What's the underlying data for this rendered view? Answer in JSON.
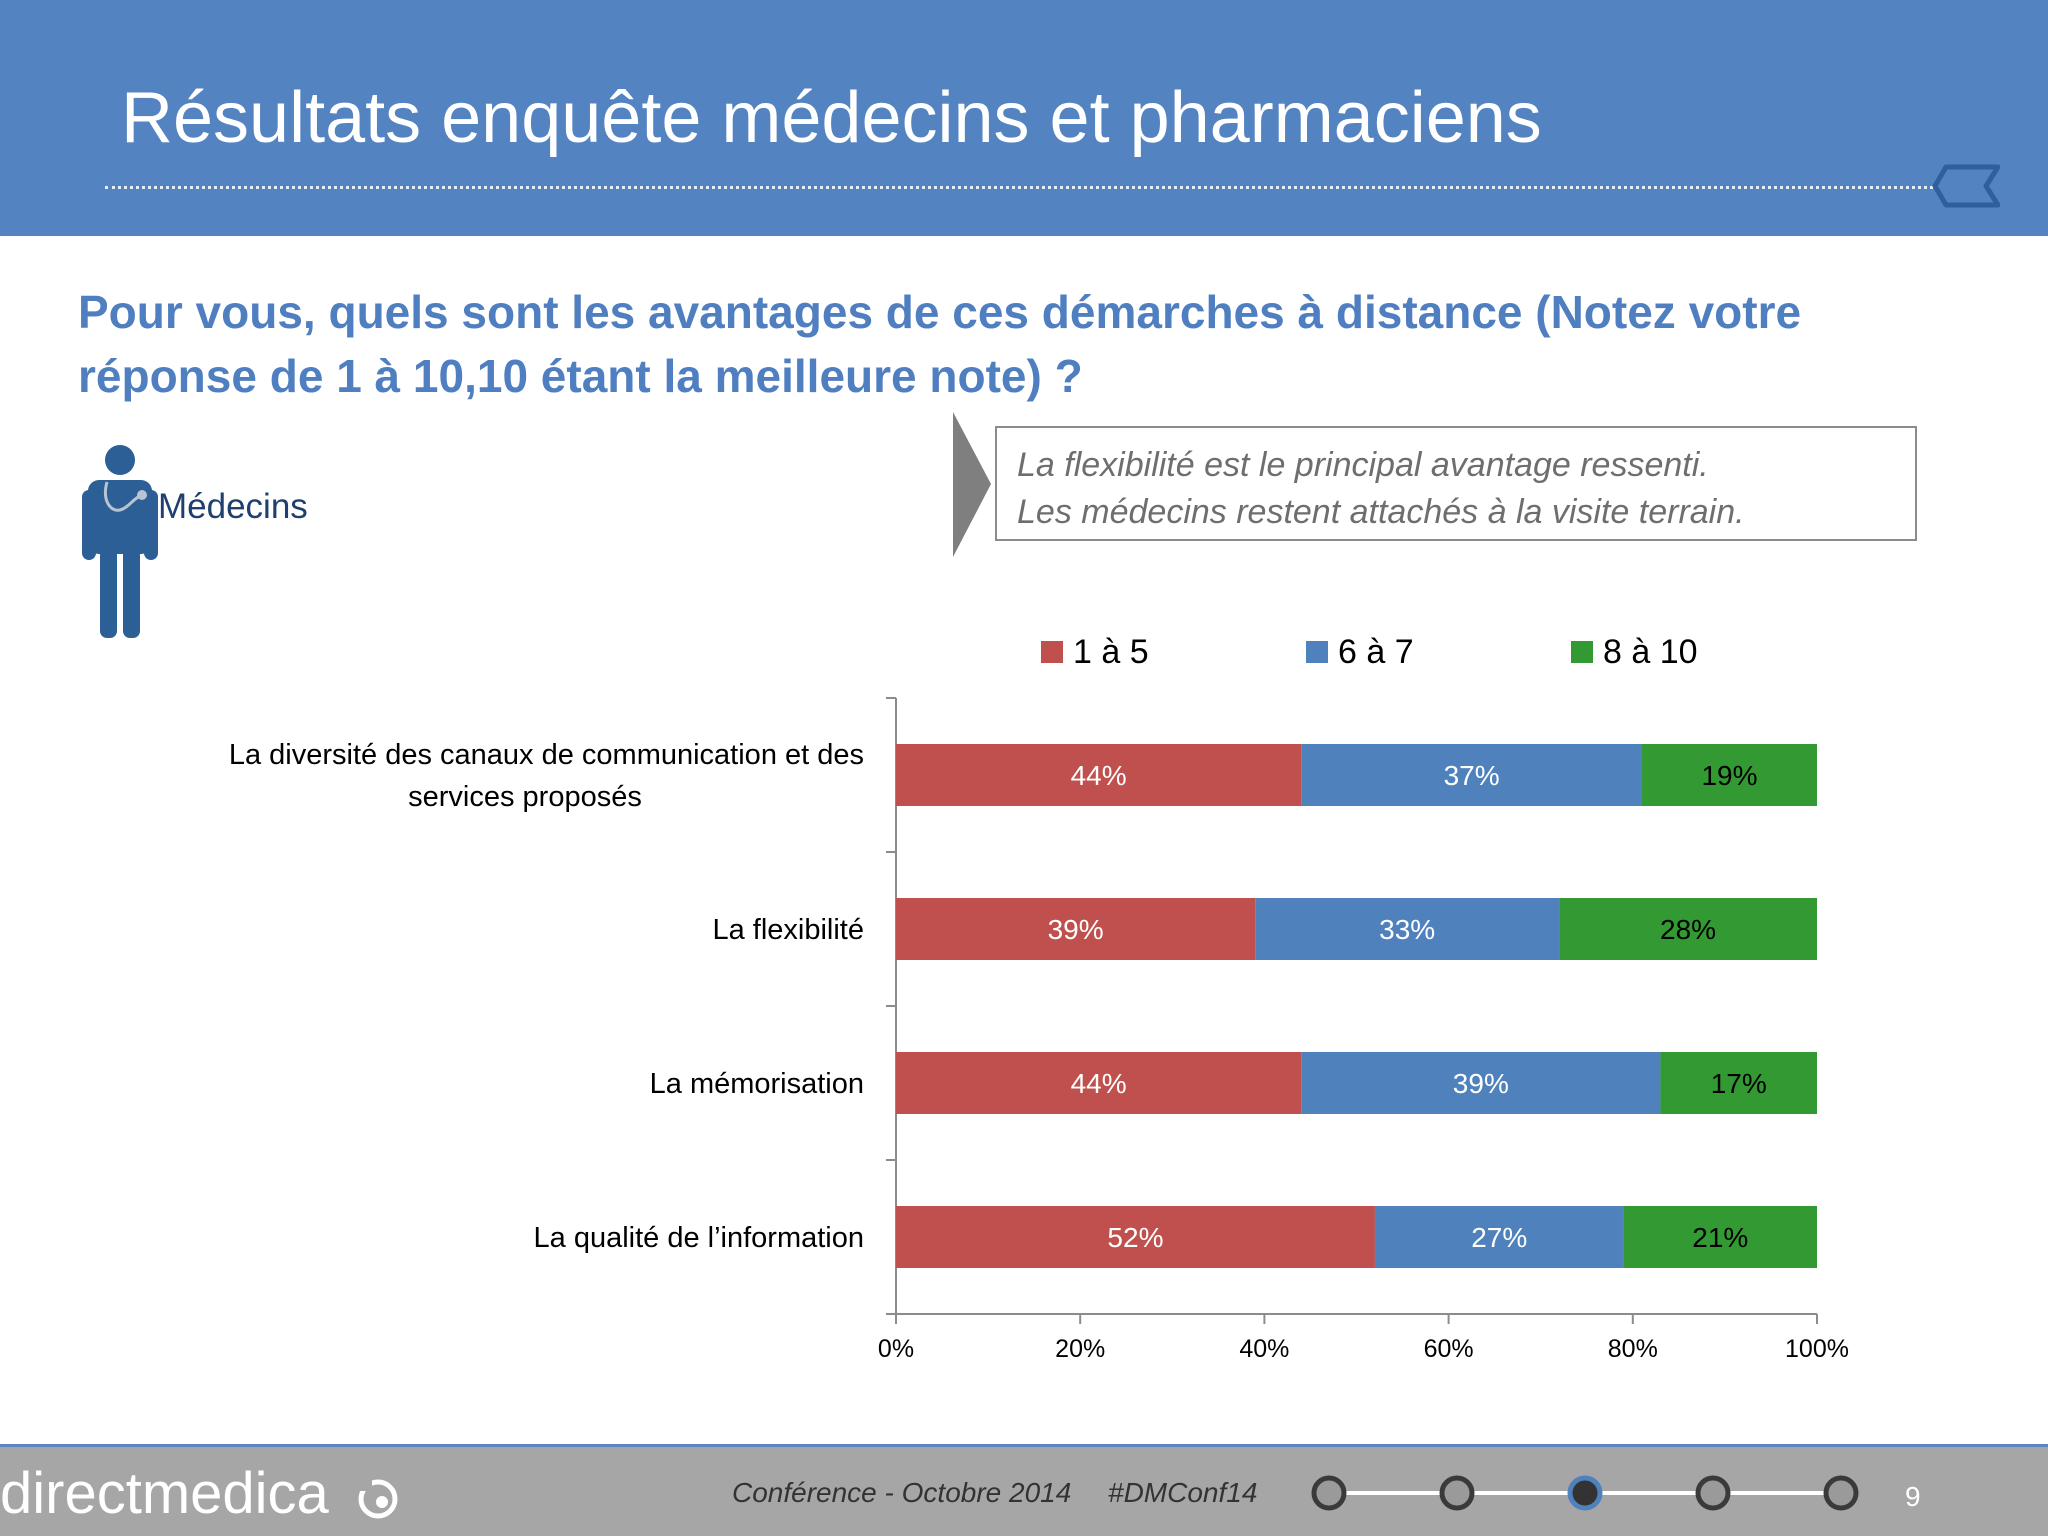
{
  "header": {
    "title": "Résultats enquête médecins et pharmaciens"
  },
  "question": "Pour vous, quels sont les avantages de ces démarches à distance (Notez votre réponse de 1 à 10,10 étant la meilleure note) ?",
  "segment": {
    "label": "Médecins",
    "icon": "doctor-stethoscope-icon"
  },
  "callout": {
    "line1": "La flexibilité est le principal avantage ressenti.",
    "line2": "Les médecins restent attachés à la visite terrain."
  },
  "colors": {
    "header_bg": "#5383c0",
    "question_text": "#4f7fc0",
    "series_1": "#c0504d",
    "series_2": "#4f81bd",
    "series_3": "#339933"
  },
  "chart_data": {
    "type": "bar",
    "orientation": "horizontal",
    "stacked": "percent",
    "categories": [
      [
        "La diversité des canaux de communication et des",
        "services proposés"
      ],
      [
        "La flexibilité"
      ],
      [
        "La mémorisation"
      ],
      [
        "La qualité de l’information"
      ]
    ],
    "series": [
      {
        "name": "1 à 5",
        "color": "#c0504d",
        "label_color": "#ffffff",
        "values": [
          44,
          39,
          44,
          52
        ]
      },
      {
        "name": "6 à 7",
        "color": "#4f81bd",
        "label_color": "#ffffff",
        "values": [
          37,
          33,
          39,
          27
        ]
      },
      {
        "name": "8 à 10",
        "color": "#339933",
        "label_color": "#000000",
        "values": [
          19,
          28,
          17,
          21
        ]
      }
    ],
    "value_suffix": "%",
    "xlim": [
      0,
      100
    ],
    "x_ticks": [
      "0%",
      "20%",
      "40%",
      "60%",
      "80%",
      "100%"
    ],
    "legend_position": "top",
    "grid": false
  },
  "footer": {
    "brand": "directmedica",
    "conference": "Conférence - Octobre 2014",
    "hashtag": "#DMConf14",
    "timeline_steps": 5,
    "timeline_active": 3,
    "page": "9"
  }
}
